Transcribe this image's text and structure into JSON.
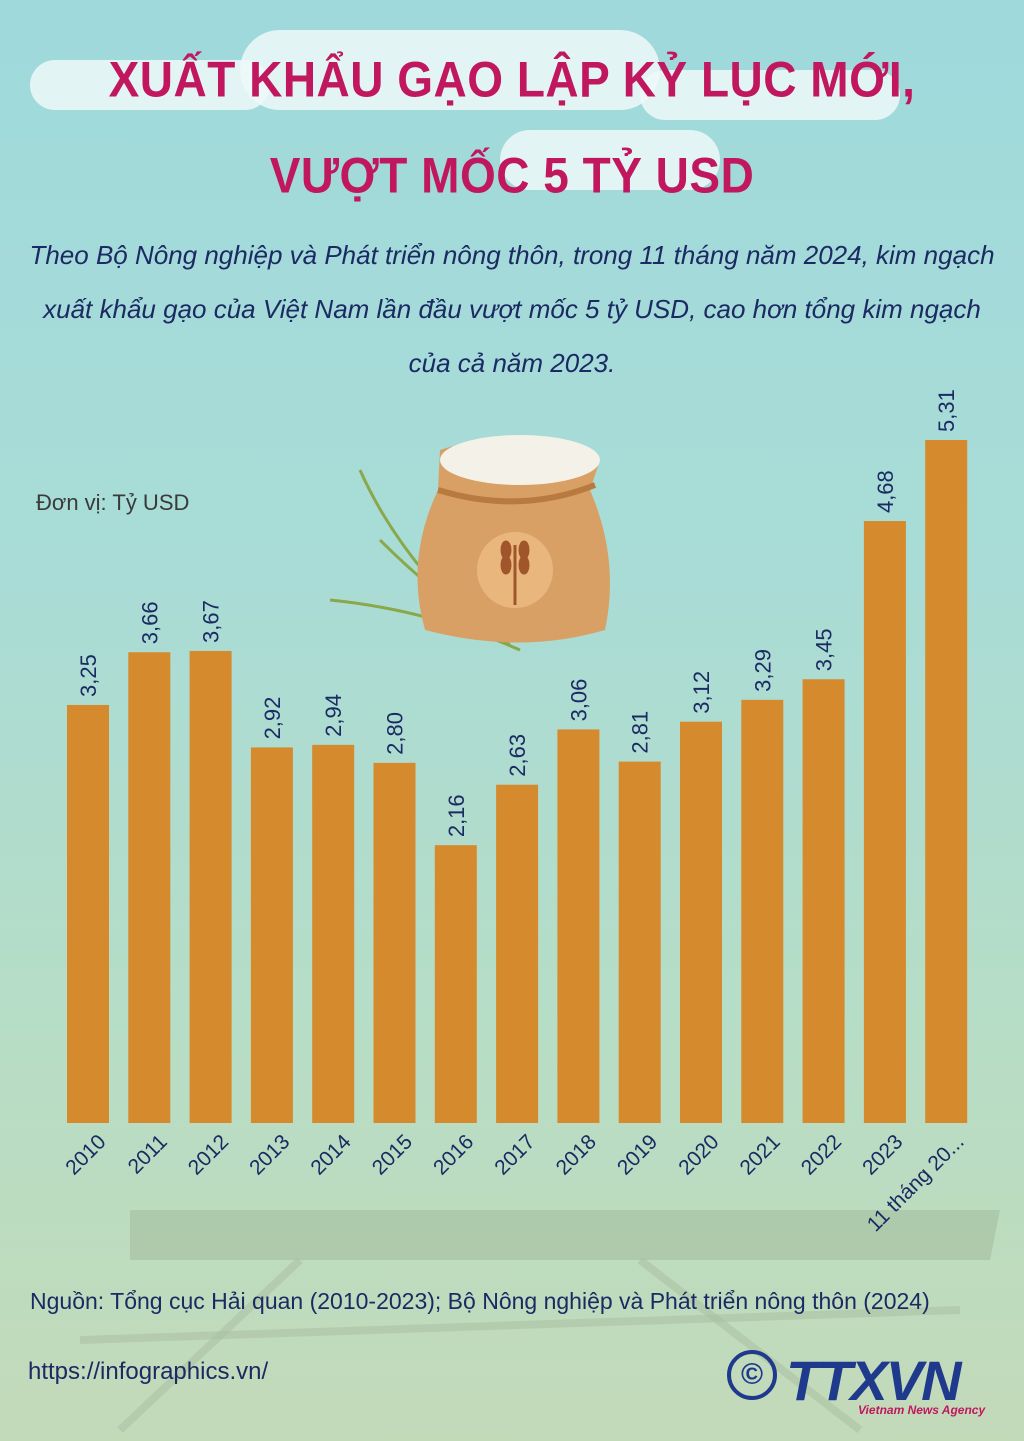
{
  "title_line1": "XUẤT KHẨU GẠO LẬP KỶ LỤC MỚI,",
  "title_line2": "VƯỢT MỐC 5 TỶ USD",
  "intro": "Theo Bộ Nông nghiệp và Phát triển nông thôn, trong 11 tháng năm 2024, kim ngạch xuất khẩu gạo của Việt Nam lần đầu vượt mốc 5 tỷ USD, cao hơn tổng kim ngạch của cả năm 2023.",
  "unit_label": "Đơn vị: Tỷ USD",
  "source": "Nguồn: Tổng cục Hải quan (2010-2023); Bộ Nông nghiệp và Phát triển nông thôn (2024)",
  "url": "https://infographics.vn/",
  "logo_copyright": "©",
  "logo_text": "TTXVN",
  "logo_subtitle": "Vietnam News Agency",
  "colors": {
    "bar": "#d58a2d",
    "title": "#c0175e",
    "text": "#1c2a63"
  },
  "chart_data": {
    "type": "bar",
    "categories": [
      "2010",
      "2011",
      "2012",
      "2013",
      "2014",
      "2015",
      "2016",
      "2017",
      "2018",
      "2019",
      "2020",
      "2021",
      "2022",
      "2023",
      "11 tháng 20..."
    ],
    "values": [
      3.25,
      3.66,
      3.67,
      2.92,
      2.94,
      2.8,
      2.16,
      2.63,
      3.06,
      2.81,
      3.12,
      3.29,
      3.45,
      4.68,
      5.31
    ],
    "value_labels": [
      "3,25",
      "3,66",
      "3,67",
      "2,92",
      "2,94",
      "2,80",
      "2,16",
      "2,63",
      "3,06",
      "2,81",
      "3,12",
      "3,29",
      "3,45",
      "4,68",
      "5,31"
    ],
    "ylabel": "Đơn vị: Tỷ USD",
    "ylim": [
      0,
      5.31
    ],
    "grid": false
  }
}
